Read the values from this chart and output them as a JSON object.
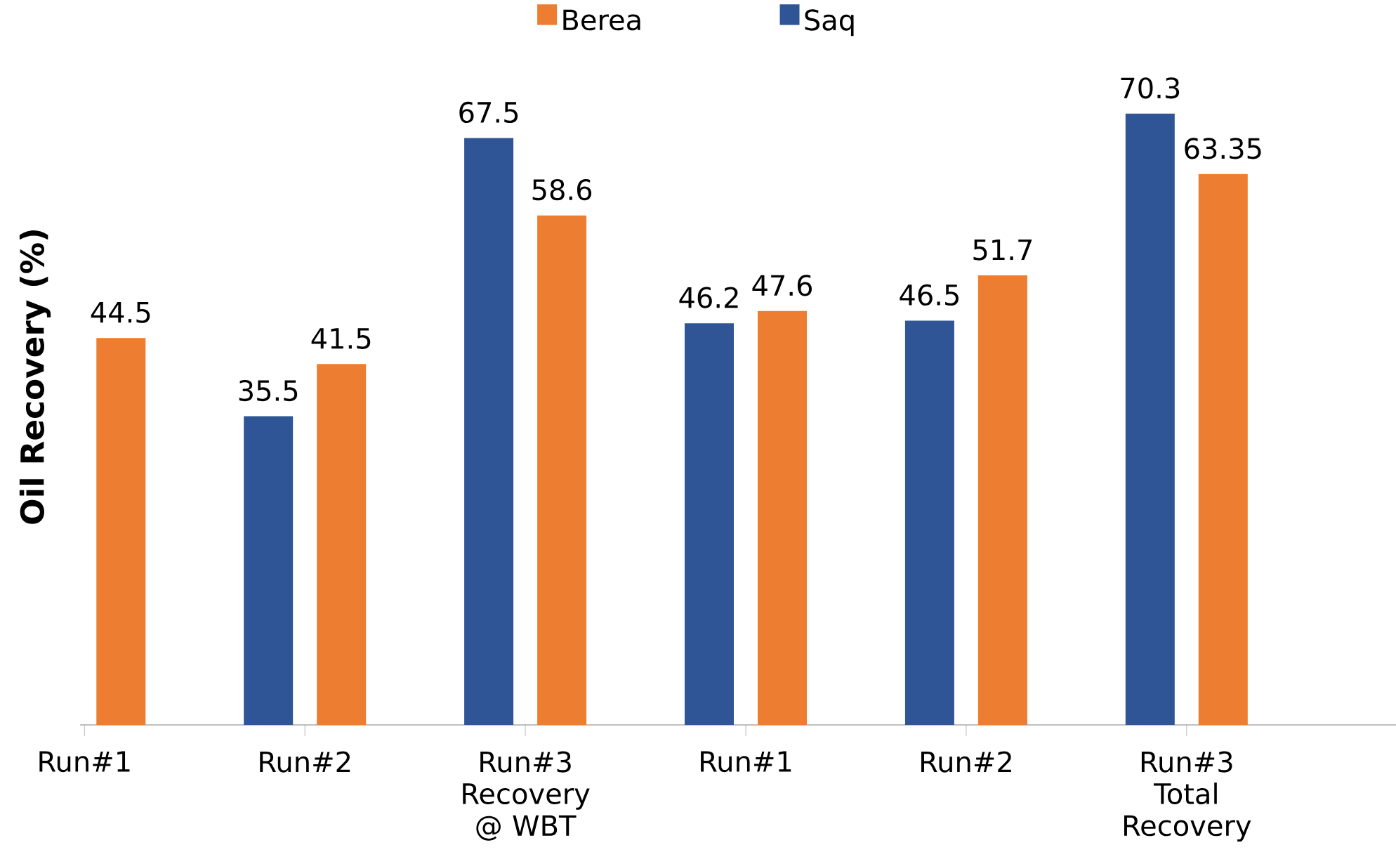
{
  "chart_data": {
    "type": "bar",
    "ylabel": "Oil Recovery (%)",
    "categories": [
      "Run#1",
      "Run#2",
      "Run#3 Recovery @ WBT",
      "Run#1",
      "Run#2",
      "Run#3 Total Recovery"
    ],
    "series": [
      {
        "name": "Berea",
        "color": "#ed7d31",
        "values": [
          44.5,
          41.5,
          58.6,
          47.6,
          51.7,
          63.35
        ]
      },
      {
        "name": "Saq",
        "color": "#2f5597",
        "values": [
          null,
          35.5,
          67.5,
          46.2,
          46.5,
          70.3
        ]
      }
    ],
    "data_labels": true,
    "legend": "top"
  }
}
